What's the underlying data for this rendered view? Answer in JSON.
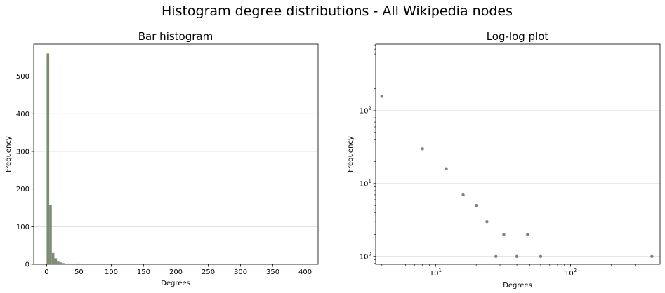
{
  "figure": {
    "suptitle": "Histogram degree distributions - All Wikipedia nodes"
  },
  "chart_data": [
    {
      "type": "bar",
      "title": "Bar histogram",
      "xlabel": "Degrees",
      "ylabel": "Frequency",
      "xlim": [
        -20,
        420
      ],
      "ylim": [
        0,
        585
      ],
      "xticks": [
        0,
        50,
        100,
        150,
        200,
        250,
        300,
        350,
        400
      ],
      "yticks": [
        0,
        100,
        200,
        300,
        400,
        500
      ],
      "grid": "y",
      "bar_color": "#7d8c73",
      "bin_width": 4,
      "bins": [
        {
          "x": 0,
          "value": 560
        },
        {
          "x": 4,
          "value": 158
        },
        {
          "x": 8,
          "value": 30
        },
        {
          "x": 12,
          "value": 16
        },
        {
          "x": 16,
          "value": 7
        },
        {
          "x": 20,
          "value": 5
        },
        {
          "x": 24,
          "value": 3
        },
        {
          "x": 28,
          "value": 1
        },
        {
          "x": 32,
          "value": 2
        },
        {
          "x": 40,
          "value": 1
        },
        {
          "x": 48,
          "value": 2
        },
        {
          "x": 60,
          "value": 1
        },
        {
          "x": 396,
          "value": 1
        }
      ]
    },
    {
      "type": "scatter",
      "title": "Log-log plot",
      "xlabel": "Degrees",
      "ylabel": "Frequency",
      "xscale": "log",
      "yscale": "log",
      "xlim": [
        3.6,
        460
      ],
      "ylim": [
        0.78,
        820
      ],
      "xticks": [
        {
          "value": 10,
          "base": "10",
          "exp": "1"
        },
        {
          "value": 100,
          "base": "10",
          "exp": "2"
        }
      ],
      "yticks": [
        {
          "value": 1,
          "base": "10",
          "exp": "0"
        },
        {
          "value": 10,
          "base": "10",
          "exp": "1"
        },
        {
          "value": 100,
          "base": "10",
          "exp": "2"
        }
      ],
      "grid": "y",
      "marker_color": "#808080",
      "points": [
        {
          "x": 4,
          "y": 158
        },
        {
          "x": 8,
          "y": 30
        },
        {
          "x": 12,
          "y": 16
        },
        {
          "x": 16,
          "y": 7
        },
        {
          "x": 20,
          "y": 5
        },
        {
          "x": 24,
          "y": 3
        },
        {
          "x": 28,
          "y": 1
        },
        {
          "x": 32,
          "y": 2
        },
        {
          "x": 40,
          "y": 1
        },
        {
          "x": 48,
          "y": 2
        },
        {
          "x": 60,
          "y": 1
        },
        {
          "x": 400,
          "y": 1
        }
      ]
    }
  ]
}
